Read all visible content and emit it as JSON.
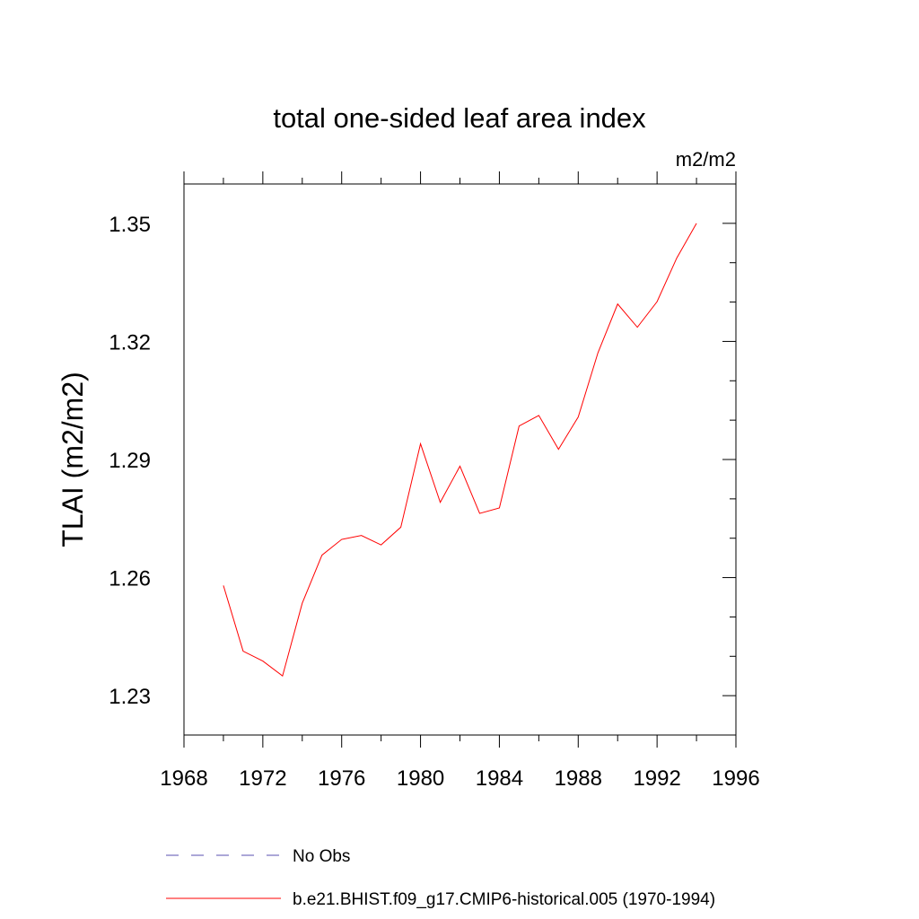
{
  "chart_data": {
    "type": "line",
    "title": "total one-sided leaf area index",
    "units": "m2/m2",
    "ylabel": "TLAI  (m2/m2)",
    "xlabel": "",
    "xlim": [
      1968,
      1996
    ],
    "ylim": [
      1.22,
      1.36
    ],
    "x_ticks": [
      1968,
      1972,
      1976,
      1980,
      1984,
      1988,
      1992,
      1996
    ],
    "x_tick_labels": [
      "1968",
      "1972",
      "1976",
      "1980",
      "1984",
      "1988",
      "1992",
      "1996"
    ],
    "y_ticks": [
      1.23,
      1.26,
      1.29,
      1.32,
      1.35
    ],
    "y_tick_labels": [
      "1.23",
      "1.26",
      "1.29",
      "1.32",
      "1.35"
    ],
    "grid": false,
    "legend_position": "bottom",
    "series": [
      {
        "name": "b.e21.BHIST.f09_g17.CMIP6-historical.005 (1970-1994)",
        "color": "#ff0000",
        "style": "solid",
        "x": [
          1970,
          1971,
          1972,
          1973,
          1974,
          1975,
          1976,
          1977,
          1978,
          1979,
          1980,
          1981,
          1982,
          1983,
          1984,
          1985,
          1986,
          1987,
          1988,
          1989,
          1990,
          1991,
          1992,
          1993,
          1994
        ],
        "values": [
          1.258,
          1.2413,
          1.2388,
          1.235,
          1.2535,
          1.2657,
          1.2697,
          1.2707,
          1.2683,
          1.2728,
          1.294,
          1.2791,
          1.2883,
          1.2763,
          1.2777,
          1.2985,
          1.3012,
          1.2926,
          1.3008,
          1.3171,
          1.3295,
          1.3236,
          1.3301,
          1.3412,
          1.35
        ]
      }
    ],
    "legend": [
      {
        "name": "No Obs",
        "color": "#5a4fb0",
        "style": "dashed"
      },
      {
        "name": "b.e21.BHIST.f09_g17.CMIP6-historical.005 (1970-1994)",
        "color": "#ff0000",
        "style": "solid"
      }
    ]
  }
}
